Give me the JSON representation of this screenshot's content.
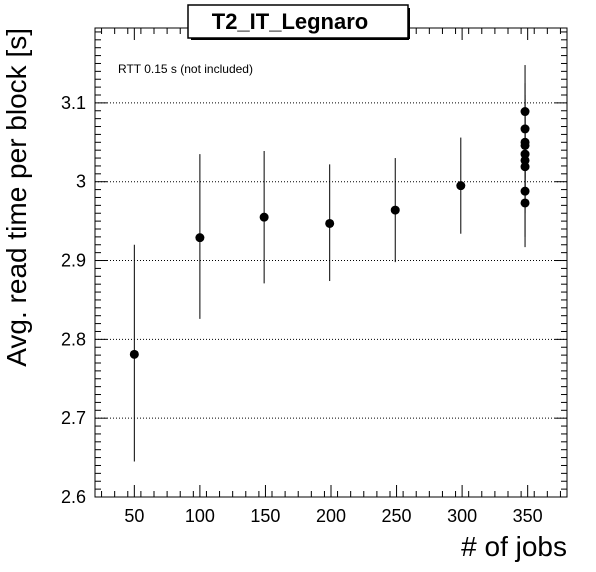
{
  "chart_data": {
    "type": "scatter",
    "title": "T2_IT_Legnaro",
    "xlabel": "# of jobs",
    "ylabel": "Avg. read time per block [s]",
    "annotation": "RTT 0.15 s (not included)",
    "xlim": [
      20,
      380
    ],
    "ylim": [
      2.6,
      3.195
    ],
    "x_ticks": [
      50,
      100,
      150,
      200,
      250,
      300,
      350
    ],
    "y_ticks": [
      2.6,
      2.7,
      2.8,
      2.9,
      3.0,
      3.1
    ],
    "y_tick_labels": [
      "2.6",
      "2.7",
      "2.8",
      "2.9",
      "3",
      "3.1"
    ],
    "x_tick_labels": [
      "50",
      "100",
      "150",
      "200",
      "250",
      "300",
      "350"
    ],
    "grid": "horizontal dotted",
    "marker_color": "#000000",
    "points": [
      {
        "x": 50,
        "y": 2.781,
        "err_low": 2.645,
        "err_high": 2.92
      },
      {
        "x": 100,
        "y": 2.929,
        "err_low": 2.826,
        "err_high": 3.035
      },
      {
        "x": 149,
        "y": 2.955,
        "err_low": 2.871,
        "err_high": 3.039
      },
      {
        "x": 199,
        "y": 2.947,
        "err_low": 2.874,
        "err_high": 3.022
      },
      {
        "x": 249,
        "y": 2.964,
        "err_low": 2.898,
        "err_high": 3.03
      },
      {
        "x": 299,
        "y": 2.995,
        "err_low": 2.934,
        "err_high": 3.056
      },
      {
        "x": 348,
        "y": 3.089,
        "err_low": 3.03,
        "err_high": 3.148
      },
      {
        "x": 348,
        "y": 3.067,
        "err_low": 3.005,
        "err_high": 3.125
      },
      {
        "x": 348,
        "y": 3.05,
        "err_low": 2.99,
        "err_high": 3.11
      },
      {
        "x": 348,
        "y": 3.046,
        "err_low": 2.985,
        "err_high": 3.105
      },
      {
        "x": 348,
        "y": 3.035,
        "err_low": 2.975,
        "err_high": 3.095
      },
      {
        "x": 348,
        "y": 3.027,
        "err_low": 2.965,
        "err_high": 3.088
      },
      {
        "x": 348,
        "y": 3.019,
        "err_low": 2.96,
        "err_high": 3.08
      },
      {
        "x": 348,
        "y": 2.988,
        "err_low": 2.93,
        "err_high": 3.048
      },
      {
        "x": 348,
        "y": 2.973,
        "err_low": 2.917,
        "err_high": 3.03
      }
    ]
  }
}
